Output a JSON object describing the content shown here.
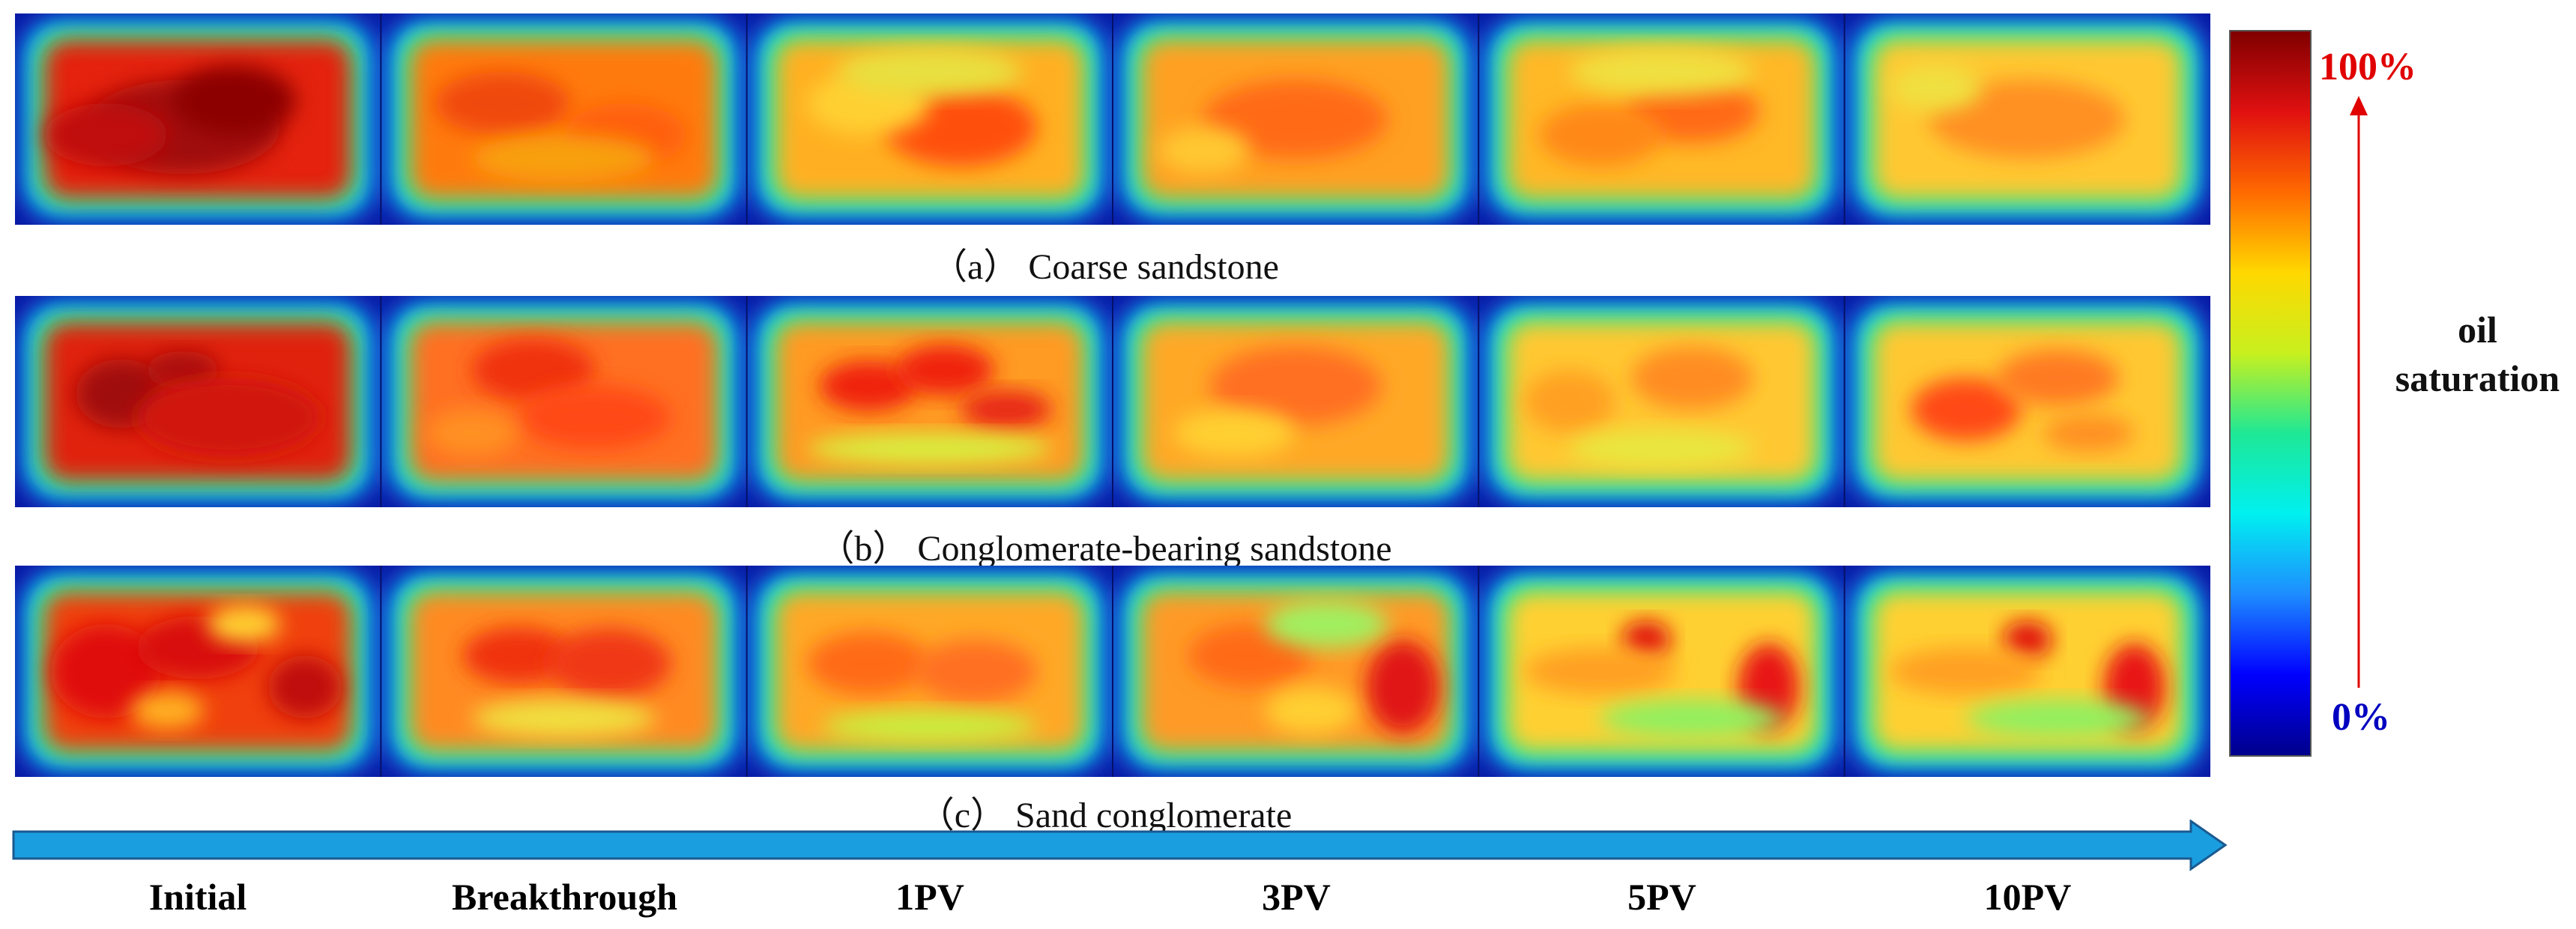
{
  "rows": [
    {
      "caption": "（a） Coarse sandstone",
      "panels": [
        {
          "base": "#e42010",
          "blobs": [
            [
              0.45,
              0.55,
              0.32,
              0.3,
              "#a00808"
            ],
            [
              0.62,
              0.38,
              0.2,
              0.22,
              "#8c0606"
            ],
            [
              0.2,
              0.6,
              0.2,
              0.2,
              "#c01010"
            ]
          ]
        },
        {
          "base": "#ff7a10",
          "blobs": [
            [
              0.3,
              0.4,
              0.22,
              0.2,
              "#f04810"
            ],
            [
              0.7,
              0.6,
              0.2,
              0.2,
              "#ff5e10"
            ],
            [
              0.5,
              0.75,
              0.3,
              0.15,
              "#f8a010"
            ]
          ]
        },
        {
          "base": "#ffb020",
          "blobs": [
            [
              0.6,
              0.55,
              0.25,
              0.25,
              "#ff5010"
            ],
            [
              0.3,
              0.4,
              0.2,
              0.2,
              "#ffd030"
            ],
            [
              0.5,
              0.2,
              0.3,
              0.15,
              "#e8e040"
            ]
          ]
        },
        {
          "base": "#ffa020",
          "blobs": [
            [
              0.5,
              0.5,
              0.3,
              0.25,
              "#ff6a18"
            ],
            [
              0.2,
              0.7,
              0.15,
              0.15,
              "#ffc830"
            ]
          ]
        },
        {
          "base": "#ffb828",
          "blobs": [
            [
              0.6,
              0.45,
              0.22,
              0.2,
              "#ff6a18"
            ],
            [
              0.3,
              0.6,
              0.2,
              0.2,
              "#ff8818"
            ],
            [
              0.5,
              0.2,
              0.3,
              0.15,
              "#f0e040"
            ]
          ]
        },
        {
          "base": "#ffc830",
          "blobs": [
            [
              0.5,
              0.5,
              0.32,
              0.25,
              "#ff9020"
            ],
            [
              0.2,
              0.3,
              0.15,
              0.15,
              "#f0e040"
            ]
          ]
        }
      ]
    },
    {
      "caption": "（b） Conglomerate-bearing sandstone",
      "panels": [
        {
          "base": "#e02010",
          "blobs": [
            [
              0.25,
              0.45,
              0.15,
              0.22,
              "#a00808"
            ],
            [
              0.45,
              0.3,
              0.12,
              0.12,
              "#a81010"
            ],
            [
              0.6,
              0.6,
              0.3,
              0.25,
              "#d01810"
            ]
          ]
        },
        {
          "base": "#ff7020",
          "blobs": [
            [
              0.4,
              0.3,
              0.2,
              0.2,
              "#f03010"
            ],
            [
              0.6,
              0.6,
              0.25,
              0.2,
              "#ff4818"
            ],
            [
              0.2,
              0.7,
              0.15,
              0.15,
              "#ff9020"
            ]
          ]
        },
        {
          "base": "#ff9a20",
          "blobs": [
            [
              0.3,
              0.4,
              0.16,
              0.16,
              "#f02010"
            ],
            [
              0.55,
              0.3,
              0.16,
              0.16,
              "#f02010"
            ],
            [
              0.75,
              0.55,
              0.15,
              0.12,
              "#e82818"
            ],
            [
              0.5,
              0.8,
              0.4,
              0.1,
              "#d8f040"
            ]
          ]
        },
        {
          "base": "#ffa828",
          "blobs": [
            [
              0.5,
              0.4,
              0.28,
              0.25,
              "#ff7020"
            ],
            [
              0.3,
              0.7,
              0.2,
              0.15,
              "#ffd030"
            ]
          ]
        },
        {
          "base": "#ffc830",
          "blobs": [
            [
              0.6,
              0.35,
              0.2,
              0.2,
              "#ff8c20"
            ],
            [
              0.2,
              0.5,
              0.15,
              0.2,
              "#ffa020"
            ],
            [
              0.5,
              0.8,
              0.3,
              0.12,
              "#e8e840"
            ]
          ]
        },
        {
          "base": "#ffc830",
          "blobs": [
            [
              0.3,
              0.55,
              0.18,
              0.2,
              "#ff4818"
            ],
            [
              0.6,
              0.35,
              0.2,
              0.18,
              "#ff7a20"
            ],
            [
              0.7,
              0.7,
              0.15,
              0.12,
              "#ff9020"
            ]
          ]
        }
      ]
    },
    {
      "caption": "（c） Sand conglomerate",
      "panels": [
        {
          "base": "#f04010",
          "blobs": [
            [
              0.2,
              0.5,
              0.18,
              0.3,
              "#e01010"
            ],
            [
              0.5,
              0.35,
              0.2,
              0.2,
              "#d81010"
            ],
            [
              0.85,
              0.6,
              0.12,
              0.2,
              "#c01010"
            ],
            [
              0.65,
              0.2,
              0.12,
              0.12,
              "#ffd030"
            ],
            [
              0.4,
              0.75,
              0.12,
              0.12,
              "#ffb020"
            ]
          ]
        },
        {
          "base": "#ff8a20",
          "blobs": [
            [
              0.35,
              0.4,
              0.18,
              0.18,
              "#f03010"
            ],
            [
              0.65,
              0.45,
              0.2,
              0.22,
              "#f03818"
            ],
            [
              0.5,
              0.8,
              0.3,
              0.12,
              "#f0e040"
            ]
          ]
        },
        {
          "base": "#ffa828",
          "blobs": [
            [
              0.3,
              0.45,
              0.2,
              0.2,
              "#ff6a18"
            ],
            [
              0.65,
              0.5,
              0.2,
              0.2,
              "#ff7020"
            ],
            [
              0.5,
              0.85,
              0.35,
              0.1,
              "#c8f040"
            ]
          ]
        },
        {
          "base": "#ff9a28",
          "blobs": [
            [
              0.85,
              0.6,
              0.12,
              0.3,
              "#e01818"
            ],
            [
              0.35,
              0.4,
              0.2,
              0.2,
              "#ff6a18"
            ],
            [
              0.6,
              0.2,
              0.2,
              0.15,
              "#a0f060"
            ],
            [
              0.55,
              0.75,
              0.15,
              0.15,
              "#ffd030"
            ]
          ]
        },
        {
          "base": "#ffd030",
          "blobs": [
            [
              0.45,
              0.3,
              0.08,
              0.12,
              "#e01010"
            ],
            [
              0.85,
              0.6,
              0.1,
              0.28,
              "#e81818"
            ],
            [
              0.3,
              0.5,
              0.25,
              0.15,
              "#ffa020"
            ],
            [
              0.6,
              0.8,
              0.3,
              0.12,
              "#90f060"
            ]
          ]
        },
        {
          "base": "#ffd030",
          "blobs": [
            [
              0.5,
              0.3,
              0.08,
              0.12,
              "#e01010"
            ],
            [
              0.85,
              0.6,
              0.1,
              0.28,
              "#e81818"
            ],
            [
              0.3,
              0.5,
              0.25,
              0.15,
              "#ffa020"
            ],
            [
              0.6,
              0.8,
              0.3,
              0.12,
              "#90f060"
            ]
          ]
        }
      ]
    }
  ],
  "stages": [
    "Initial",
    "Breakthrough",
    "1PV",
    "3PV",
    "5PV",
    "10PV"
  ],
  "colorbar": {
    "max_label": "100%",
    "min_label": "0%",
    "title_line1": "oil",
    "title_line2": "saturation",
    "max_color": "#e00000",
    "min_color": "#0000c0",
    "arrow_color": "#e00000",
    "gradient_top_to_bottom": [
      "#800000",
      "#e01010",
      "#ff6a00",
      "#ffd800",
      "#c8f01e",
      "#1ee896",
      "#00f0f0",
      "#1e8cff",
      "#0000ff",
      "#00008c"
    ]
  },
  "progress_arrow": {
    "color": "#1a9ee0"
  }
}
